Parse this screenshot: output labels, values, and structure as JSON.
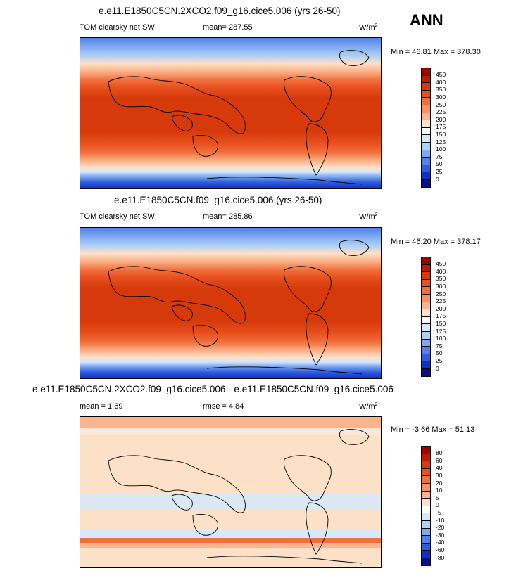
{
  "season": "ANN",
  "panels": [
    {
      "title": "e.e11.E1850C5CN.2XCO2.f09_g16.cice5.006 (yrs 26-50)",
      "left_label": "TOM clearsky net SW",
      "center_label": "mean= 287.55",
      "units": "W/m",
      "units_exp": "2",
      "minmax": "Min =  46.81 Max = 378.30",
      "levels": [
        "450",
        "400",
        "350",
        "300",
        "250",
        "225",
        "200",
        "175",
        "150",
        "125",
        "100",
        "75",
        "50",
        "25",
        "0"
      ],
      "colors": [
        "#9e0000",
        "#bf1a00",
        "#d63a0a",
        "#e8501e",
        "#f0703c",
        "#f89060",
        "#fbb48c",
        "#fde0c8",
        "#ffffff",
        "#d6e8fa",
        "#b0d0f4",
        "#80aaf0",
        "#5082ea",
        "#2e5cde",
        "#1030c6",
        "#05108a"
      ]
    },
    {
      "title": "e.e11.E1850C5CN.f09_g16.cice5.006 (yrs 26-50)",
      "left_label": "TOM clearsky net SW",
      "center_label": "mean= 285.86",
      "units": "W/m",
      "units_exp": "2",
      "minmax": "Min =  46.20 Max = 378.17",
      "levels": [
        "450",
        "400",
        "350",
        "300",
        "250",
        "225",
        "200",
        "175",
        "150",
        "125",
        "100",
        "75",
        "50",
        "25",
        "0"
      ],
      "colors": [
        "#9e0000",
        "#bf1a00",
        "#d63a0a",
        "#e8501e",
        "#f0703c",
        "#f89060",
        "#fbb48c",
        "#fde0c8",
        "#ffffff",
        "#d6e8fa",
        "#b0d0f4",
        "#80aaf0",
        "#5082ea",
        "#2e5cde",
        "#1030c6",
        "#05108a"
      ]
    },
    {
      "title": "e.e11.E1850C5CN.2XCO2.f09_g16.cice5.006 - e.e11.E1850C5CN.f09_g16.cice5.006",
      "left_label": "mean =   1.69",
      "center_label": "rmse =   4.84",
      "units": "W/m",
      "units_exp": "2",
      "minmax": "Min =  -3.66 Max =  51.13",
      "levels": [
        "80",
        "60",
        "40",
        "30",
        "20",
        "10",
        "5",
        "0",
        "-5",
        "-10",
        "-20",
        "-30",
        "-40",
        "-60",
        "-80"
      ],
      "colors": [
        "#9e0000",
        "#bf1a00",
        "#d63a0a",
        "#e8501e",
        "#f0703c",
        "#f89060",
        "#fbb48c",
        "#fde0c8",
        "#ffffff",
        "#d6e8fa",
        "#b0d0f4",
        "#80aaf0",
        "#5082ea",
        "#2e5cde",
        "#1030c6",
        "#05108a"
      ]
    }
  ]
}
